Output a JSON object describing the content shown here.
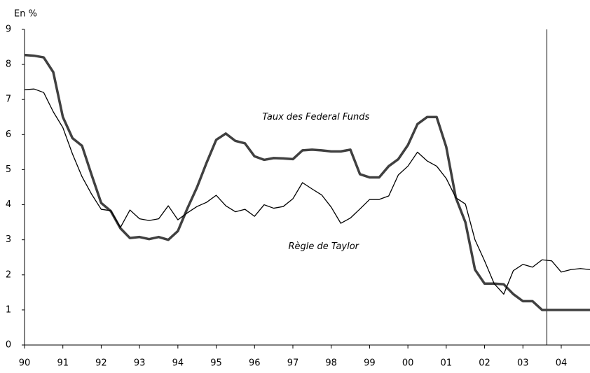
{
  "chart_data": {
    "type": "line",
    "y_label": "En %",
    "annotations": [
      {
        "text": "Taux des Federal Funds",
        "x": 1997.6,
        "y": 6.5
      },
      {
        "text": "Règle de Taylor",
        "x": 1997.8,
        "y": 2.8
      }
    ],
    "vline": 2003.625,
    "x": [
      1990,
      1990.25,
      1990.5,
      1990.75,
      1991,
      1991.25,
      1991.5,
      1991.75,
      1992,
      1992.25,
      1992.5,
      1992.75,
      1993,
      1993.25,
      1993.5,
      1993.75,
      1994,
      1994.25,
      1994.5,
      1994.75,
      1995,
      1995.25,
      1995.5,
      1995.75,
      1996,
      1996.25,
      1996.5,
      1996.75,
      1997,
      1997.25,
      1997.5,
      1997.75,
      1998,
      1998.25,
      1998.5,
      1998.75,
      1999,
      1999.25,
      1999.5,
      1999.75,
      2000,
      2000.25,
      2000.5,
      2000.75,
      2001,
      2001.25,
      2001.5,
      2001.75,
      2002,
      2002.25,
      2002.5,
      2002.75,
      2003,
      2003.25,
      2003.5,
      2003.75,
      2004,
      2004.25,
      2004.5,
      2004.75
    ],
    "series": [
      {
        "name": "Taux des Federal Funds",
        "color": "#404040",
        "width": 3.5,
        "values": [
          8.27,
          8.25,
          8.2,
          7.78,
          6.5,
          5.9,
          5.68,
          4.85,
          4.05,
          3.82,
          3.33,
          3.05,
          3.08,
          3.02,
          3.08,
          3.0,
          3.25,
          3.9,
          4.5,
          5.2,
          5.85,
          6.03,
          5.82,
          5.75,
          5.38,
          5.28,
          5.33,
          5.32,
          5.3,
          5.55,
          5.57,
          5.55,
          5.52,
          5.52,
          5.57,
          4.87,
          4.78,
          4.78,
          5.1,
          5.3,
          5.7,
          6.3,
          6.5,
          6.5,
          5.65,
          4.2,
          3.5,
          2.15,
          1.75,
          1.75,
          1.73,
          1.45,
          1.25,
          1.25,
          1.0,
          1.0,
          1.0,
          1.0,
          1.0,
          1.0
        ]
      },
      {
        "name": "Règle de Taylor",
        "color": "#000000",
        "width": 1.3,
        "values": [
          7.28,
          7.3,
          7.2,
          6.65,
          6.2,
          5.45,
          4.8,
          4.3,
          3.87,
          3.83,
          3.35,
          3.85,
          3.6,
          3.55,
          3.6,
          3.97,
          3.57,
          3.77,
          3.95,
          4.07,
          4.27,
          3.97,
          3.8,
          3.87,
          3.67,
          4.0,
          3.9,
          3.95,
          4.17,
          4.63,
          4.45,
          4.28,
          3.93,
          3.47,
          3.62,
          3.88,
          4.15,
          4.15,
          4.25,
          4.85,
          5.1,
          5.5,
          5.25,
          5.1,
          4.75,
          4.2,
          4.02,
          3.0,
          2.4,
          1.75,
          1.45,
          2.12,
          2.3,
          2.22,
          2.43,
          2.4,
          2.08,
          2.15,
          2.18,
          2.15
        ]
      }
    ],
    "xlim": [
      1990,
      2004.75
    ],
    "ylim": [
      0,
      9
    ],
    "yticks": [
      0,
      1,
      2,
      3,
      4,
      5,
      6,
      7,
      8,
      9
    ],
    "xticks": [
      {
        "value": 1990,
        "label": "90"
      },
      {
        "value": 1991,
        "label": "91"
      },
      {
        "value": 1992,
        "label": "92"
      },
      {
        "value": 1993,
        "label": "93"
      },
      {
        "value": 1994,
        "label": "94"
      },
      {
        "value": 1995,
        "label": "95"
      },
      {
        "value": 1996,
        "label": "96"
      },
      {
        "value": 1997,
        "label": "97"
      },
      {
        "value": 1998,
        "label": "98"
      },
      {
        "value": 1999,
        "label": "99"
      },
      {
        "value": 2000,
        "label": "00"
      },
      {
        "value": 2001,
        "label": "01"
      },
      {
        "value": 2002,
        "label": "02"
      },
      {
        "value": 2003,
        "label": "03"
      },
      {
        "value": 2004,
        "label": "04"
      }
    ],
    "grid": false
  }
}
